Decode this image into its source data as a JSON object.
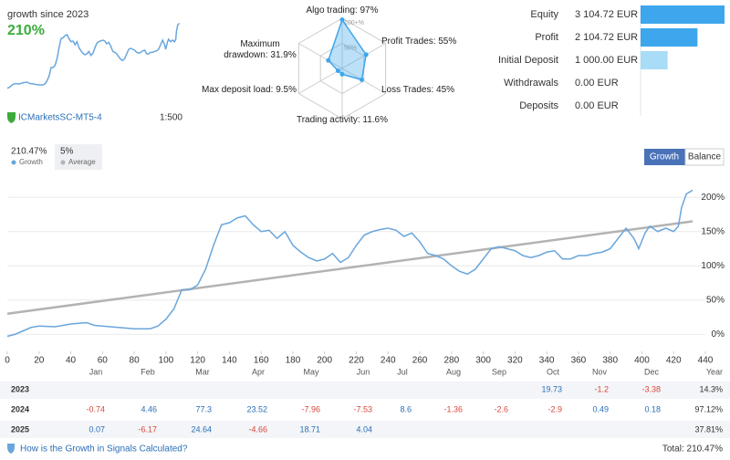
{
  "header": {
    "title": "growth since 2023",
    "value": "210%",
    "broker": "ICMarketsSC-MT5-4",
    "leverage": "1:500"
  },
  "radar": {
    "rlim": [
      0,
      100
    ],
    "rticks": [
      {
        "value": 100,
        "label": "100+%"
      },
      {
        "value": 50,
        "label": "50%"
      }
    ],
    "axes": [
      {
        "label": "Algo trading: 97%",
        "value": 97
      },
      {
        "label": "Profit Trades: 55%",
        "value": 55
      },
      {
        "label": "Loss Trades: 45%",
        "value": 45
      },
      {
        "label": "Trading activity: 11.6%",
        "value": 11.6
      },
      {
        "label": "Max deposit load: 9.5%",
        "value": 9.5
      },
      {
        "label": "Maximum drawdown: 31.9%",
        "value": 31.9
      }
    ]
  },
  "summary": {
    "items": [
      {
        "label": "Equity",
        "value_label": "3 104.72 EUR",
        "value": 3104.72,
        "color": "#3ea6ec"
      },
      {
        "label": "Profit",
        "value_label": "2 104.72 EUR",
        "value": 2104.72,
        "color": "#3ea6ec"
      },
      {
        "label": "Initial Deposit",
        "value_label": "1 000.00 EUR",
        "value": 1000,
        "color": "#a9dcf6"
      },
      {
        "label": "Withdrawals",
        "value_label": "0.00 EUR",
        "value": 0,
        "color": "#3ea6ec"
      },
      {
        "label": "Deposits",
        "value_label": "0.00 EUR",
        "value": 0,
        "color": "#3ea6ec"
      }
    ]
  },
  "tabs": [
    "Growth",
    "Balance"
  ],
  "chart_data": {
    "type": "line",
    "series": [
      {
        "name": "Growth",
        "summary": "210.47%",
        "color": "#6aa6dc",
        "x": [
          0,
          5,
          10,
          15,
          20,
          30,
          40,
          50,
          55,
          60,
          70,
          80,
          90,
          95,
          100,
          105,
          110,
          115,
          120,
          125,
          130,
          135,
          140,
          145,
          150,
          155,
          160,
          165,
          170,
          175,
          180,
          185,
          190,
          195,
          200,
          205,
          210,
          215,
          220,
          225,
          230,
          235,
          240,
          245,
          250,
          255,
          260,
          265,
          270,
          275,
          280,
          285,
          290,
          295,
          300,
          305,
          310,
          315,
          320,
          325,
          330,
          335,
          340,
          345,
          350,
          355,
          360,
          365,
          370,
          375,
          380,
          385,
          390,
          395,
          398,
          402,
          405,
          410,
          415,
          420,
          423,
          425,
          428,
          432
        ],
        "values": [
          -3,
          0,
          5,
          10,
          12,
          11,
          15,
          17,
          13,
          12,
          10,
          8,
          8,
          12,
          22,
          37,
          65,
          65,
          72,
          95,
          130,
          160,
          163,
          170,
          173,
          160,
          150,
          152,
          140,
          150,
          130,
          120,
          112,
          107,
          110,
          118,
          105,
          112,
          130,
          145,
          150,
          153,
          155,
          152,
          143,
          148,
          135,
          118,
          115,
          110,
          100,
          92,
          88,
          95,
          110,
          125,
          128,
          125,
          122,
          115,
          112,
          115,
          120,
          122,
          110,
          110,
          115,
          115,
          118,
          120,
          125,
          140,
          155,
          140,
          125,
          148,
          158,
          150,
          155,
          150,
          158,
          185,
          205,
          210.47
        ]
      },
      {
        "name": "Average",
        "summary": "5%",
        "color": "#b3b3b3",
        "x": [
          0,
          432
        ],
        "values": [
          30,
          165
        ]
      }
    ],
    "xlim": [
      0,
      440
    ],
    "ylim": [
      -25,
      215
    ],
    "xticks": [
      0,
      20,
      40,
      60,
      80,
      100,
      120,
      140,
      160,
      180,
      200,
      220,
      240,
      260,
      280,
      300,
      320,
      340,
      360,
      380,
      400,
      420,
      440
    ],
    "yticks": [
      {
        "value": 0,
        "label": "0%"
      },
      {
        "value": 50,
        "label": "50%"
      },
      {
        "value": 100,
        "label": "100%"
      },
      {
        "value": 150,
        "label": "150%"
      },
      {
        "value": 200,
        "label": "200%"
      }
    ],
    "grid": true
  },
  "table": {
    "columns": [
      "Jan",
      "Feb",
      "Mar",
      "Apr",
      "May",
      "Jun",
      "Jul",
      "Aug",
      "Sep",
      "Oct",
      "Nov",
      "Dec",
      "Year"
    ],
    "rows": [
      {
        "year": "2023",
        "cells": [
          null,
          null,
          null,
          null,
          null,
          null,
          null,
          null,
          null,
          "19.73",
          "-1.2",
          "-3.38",
          "14.3%"
        ]
      },
      {
        "year": "2024",
        "cells": [
          "-0.74",
          "4.46",
          "77.3",
          "23.52",
          "-7.96",
          "-7.53",
          "8.6",
          "-1.36",
          "-2.6",
          "-2.9",
          "0.49",
          "0.18",
          "97.12%"
        ]
      },
      {
        "year": "2025",
        "cells": [
          "0.07",
          "-6.17",
          "24.64",
          "-4.66",
          "18.71",
          "4.04",
          null,
          null,
          null,
          null,
          null,
          null,
          "37.81%"
        ]
      }
    ]
  },
  "footer": {
    "link": "How is the Growth in Signals Calculated?",
    "total": "Total: 210.47%"
  }
}
